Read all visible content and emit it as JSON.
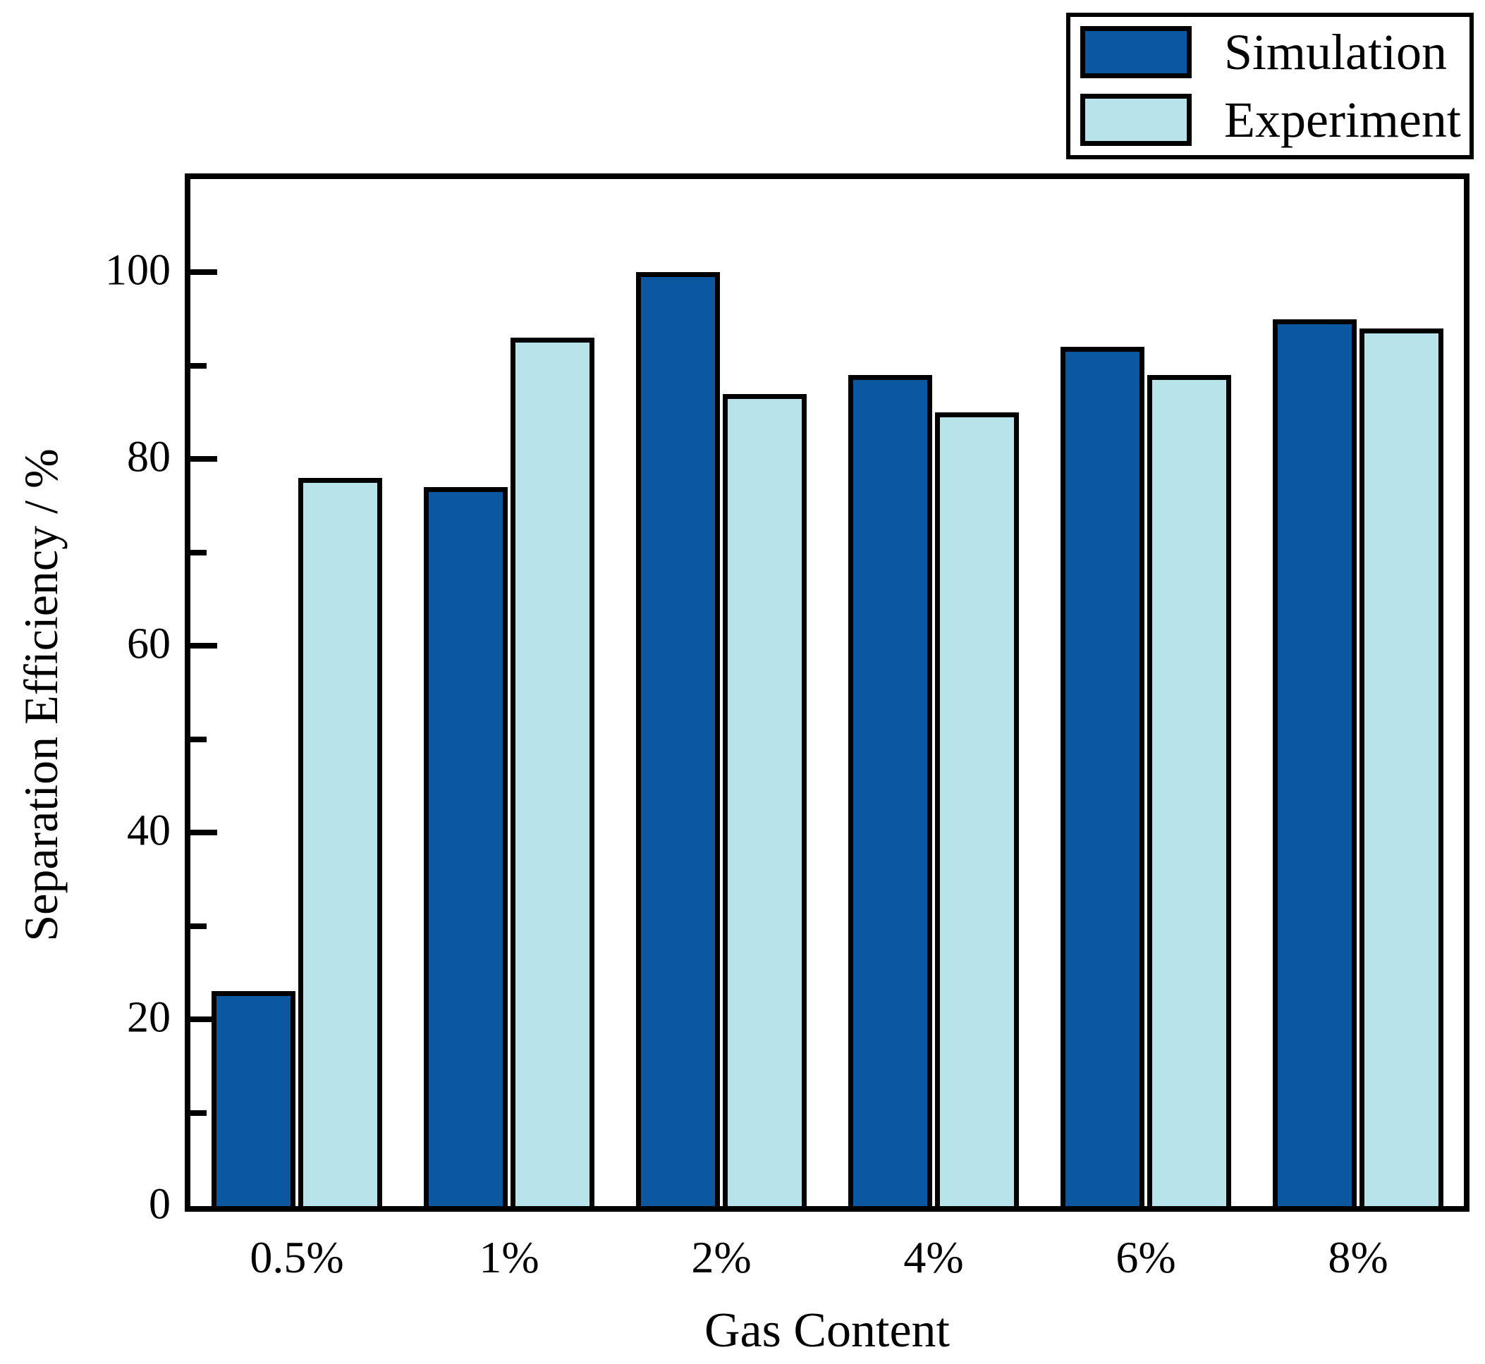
{
  "chart_data": {
    "type": "bar",
    "title": "",
    "xlabel": "Gas Content",
    "ylabel": "Separation Efficiency / %",
    "categories": [
      "0.5%",
      "1%",
      "2%",
      "4%",
      "6%",
      "8%"
    ],
    "series": [
      {
        "name": "Simulation",
        "color": "#0B58A0",
        "values": [
          23,
          77,
          100,
          89,
          92,
          95
        ]
      },
      {
        "name": "Experiment",
        "color": "#B7E3EA",
        "values": [
          78,
          93,
          87,
          85,
          89,
          94
        ]
      }
    ],
    "ylim": [
      0,
      110
    ],
    "yticks_major": [
      0,
      20,
      40,
      60,
      80,
      100
    ],
    "yticks_minor": [
      10,
      30,
      50,
      70,
      90
    ],
    "grid": false,
    "legend_position": "top-right",
    "bar_edge_color": "#000000",
    "axis_color": "#000000"
  },
  "legend": {
    "simulation_label": "Simulation",
    "experiment_label": "Experiment"
  }
}
